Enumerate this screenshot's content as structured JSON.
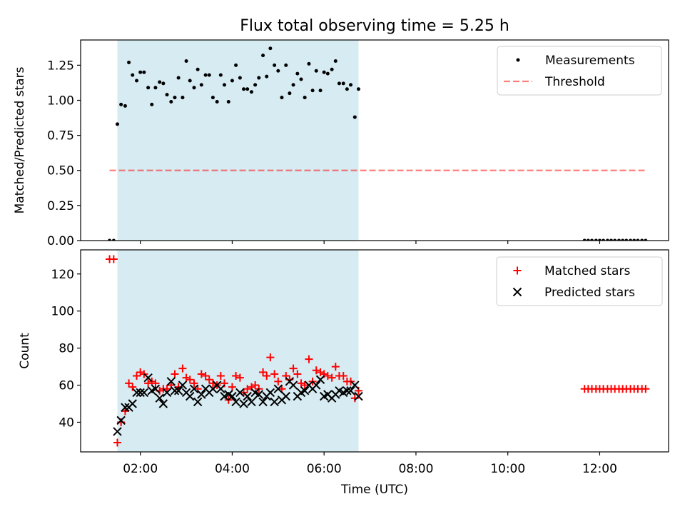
{
  "title": "Flux total observing time = 5.25 h",
  "colors": {
    "shade": "#add8e6",
    "threshold": "#ff0000",
    "matched": "#ff0000",
    "predicted": "#000000",
    "measurement": "#000000"
  },
  "chart_data": [
    {
      "type": "scatter",
      "title": "Flux total observing time = 5.25 h",
      "ylabel": "Matched/Predicted stars",
      "xlabel": "",
      "xlim": [
        0.7,
        13.5
      ],
      "ylim": [
        0,
        1.43
      ],
      "yticks": [
        0.0,
        0.25,
        0.5,
        0.75,
        1.0,
        1.25
      ],
      "ytick_labels": [
        "0.00",
        "0.25",
        "0.50",
        "0.75",
        "1.00",
        "1.25"
      ],
      "xticks": [
        2,
        4,
        6,
        8,
        10,
        12
      ],
      "shaded_span": [
        1.5,
        6.75
      ],
      "legend": [
        "Measurements",
        "Threshold"
      ],
      "threshold": {
        "name": "Threshold",
        "y": 0.5,
        "x_range": [
          1.33,
          13.0
        ]
      },
      "series": [
        {
          "name": "Measurements",
          "x": [
            1.33,
            1.42,
            1.5,
            1.58,
            1.67,
            1.75,
            1.83,
            1.92,
            2.0,
            2.08,
            2.17,
            2.25,
            2.33,
            2.42,
            2.5,
            2.58,
            2.67,
            2.75,
            2.83,
            2.92,
            3.0,
            3.08,
            3.17,
            3.25,
            3.33,
            3.42,
            3.5,
            3.58,
            3.67,
            3.75,
            3.83,
            3.92,
            4.0,
            4.08,
            4.17,
            4.25,
            4.33,
            4.42,
            4.5,
            4.58,
            4.67,
            4.75,
            4.83,
            4.92,
            5.0,
            5.08,
            5.17,
            5.25,
            5.33,
            5.42,
            5.5,
            5.58,
            5.67,
            5.75,
            5.83,
            5.92,
            6.0,
            6.08,
            6.17,
            6.25,
            6.33,
            6.42,
            6.5,
            6.58,
            6.67,
            6.75,
            11.67,
            11.75,
            11.83,
            11.92,
            12.0,
            12.08,
            12.17,
            12.25,
            12.33,
            12.42,
            12.5,
            12.58,
            12.67,
            12.75,
            12.83,
            12.92,
            13.0
          ],
          "y": [
            0.0,
            0.0,
            0.83,
            0.97,
            0.96,
            1.27,
            1.18,
            1.14,
            1.2,
            1.2,
            1.09,
            0.97,
            1.09,
            1.13,
            1.12,
            1.04,
            0.99,
            1.02,
            1.16,
            1.02,
            1.28,
            1.14,
            1.09,
            1.22,
            1.11,
            1.18,
            1.18,
            1.02,
            0.99,
            1.18,
            1.11,
            0.99,
            1.14,
            1.25,
            1.16,
            1.08,
            1.08,
            1.06,
            1.11,
            1.16,
            1.32,
            1.17,
            1.37,
            1.25,
            1.21,
            1.02,
            1.25,
            1.05,
            1.11,
            1.19,
            1.15,
            1.02,
            1.26,
            1.07,
            1.21,
            1.07,
            1.2,
            1.19,
            1.22,
            1.28,
            1.12,
            1.12,
            1.08,
            1.11,
            0.88,
            1.08,
            0.0,
            0.0,
            0.0,
            0.0,
            0.0,
            0.0,
            0.0,
            0.0,
            0.0,
            0.0,
            0.0,
            0.0,
            0.0,
            0.0,
            0.0,
            0.0,
            0.0
          ]
        }
      ]
    },
    {
      "type": "scatter",
      "title": "",
      "ylabel": "Count",
      "xlabel": "Time (UTC)",
      "xlim": [
        0.7,
        13.5
      ],
      "ylim": [
        24,
        133
      ],
      "yticks": [
        40,
        60,
        80,
        100,
        120
      ],
      "ytick_labels": [
        "40",
        "60",
        "80",
        "100",
        "120"
      ],
      "xticks": [
        2,
        4,
        6,
        8,
        10,
        12
      ],
      "xtick_labels": [
        "02:00",
        "04:00",
        "06:00",
        "08:00",
        "10:00",
        "12:00"
      ],
      "shaded_span": [
        1.5,
        6.75
      ],
      "legend": [
        "Matched stars",
        "Predicted stars"
      ],
      "series": [
        {
          "name": "Matched stars",
          "marker": "plus",
          "x": [
            1.33,
            1.42,
            1.5,
            1.58,
            1.67,
            1.75,
            1.83,
            1.92,
            2.0,
            2.08,
            2.17,
            2.25,
            2.33,
            2.42,
            2.5,
            2.58,
            2.67,
            2.75,
            2.83,
            2.92,
            3.0,
            3.08,
            3.17,
            3.25,
            3.33,
            3.42,
            3.5,
            3.58,
            3.67,
            3.75,
            3.83,
            3.92,
            4.0,
            4.08,
            4.17,
            4.25,
            4.33,
            4.42,
            4.5,
            4.58,
            4.67,
            4.75,
            4.83,
            4.92,
            5.0,
            5.08,
            5.17,
            5.25,
            5.33,
            5.42,
            5.5,
            5.58,
            5.67,
            5.75,
            5.83,
            5.92,
            6.0,
            6.08,
            6.17,
            6.25,
            6.33,
            6.42,
            6.5,
            6.58,
            6.67,
            6.75,
            11.67,
            11.75,
            11.83,
            11.92,
            12.0,
            12.08,
            12.17,
            12.25,
            12.33,
            12.42,
            12.5,
            12.58,
            12.67,
            12.75,
            12.83,
            12.92,
            13.0
          ],
          "y": [
            128,
            128,
            29,
            40,
            46,
            61,
            59,
            65,
            67,
            66,
            61,
            62,
            61,
            57,
            58,
            58,
            60,
            66,
            59,
            69,
            64,
            63,
            61,
            58,
            66,
            65,
            63,
            61,
            60,
            65,
            61,
            52,
            59,
            65,
            64,
            56,
            58,
            59,
            60,
            58,
            67,
            65,
            75,
            66,
            62,
            58,
            65,
            63,
            69,
            66,
            61,
            60,
            74,
            62,
            68,
            67,
            66,
            65,
            64,
            70,
            65,
            65,
            62,
            62,
            53,
            57,
            58,
            58,
            58,
            58,
            58,
            58,
            58,
            58,
            58,
            58,
            58,
            58,
            58,
            58,
            58,
            58,
            58
          ]
        },
        {
          "name": "Predicted stars",
          "marker": "x",
          "x": [
            1.5,
            1.58,
            1.67,
            1.75,
            1.83,
            1.92,
            2.0,
            2.08,
            2.17,
            2.25,
            2.33,
            2.42,
            2.5,
            2.58,
            2.67,
            2.75,
            2.83,
            2.92,
            3.0,
            3.08,
            3.17,
            3.25,
            3.33,
            3.42,
            3.5,
            3.58,
            3.67,
            3.75,
            3.83,
            3.92,
            4.0,
            4.08,
            4.17,
            4.25,
            4.33,
            4.42,
            4.5,
            4.58,
            4.67,
            4.75,
            4.83,
            4.92,
            5.0,
            5.08,
            5.17,
            5.25,
            5.33,
            5.42,
            5.5,
            5.58,
            5.67,
            5.75,
            5.83,
            5.92,
            6.0,
            6.08,
            6.17,
            6.25,
            6.33,
            6.42,
            6.5,
            6.58,
            6.67,
            6.75
          ],
          "y": [
            35,
            41,
            48,
            48,
            50,
            56,
            56,
            56,
            64,
            57,
            58,
            53,
            50,
            56,
            62,
            57,
            57,
            60,
            56,
            54,
            58,
            51,
            55,
            58,
            56,
            58,
            60,
            58,
            54,
            55,
            54,
            51,
            56,
            50,
            54,
            51,
            56,
            55,
            51,
            54,
            56,
            51,
            58,
            52,
            54,
            62,
            60,
            54,
            56,
            57,
            60,
            58,
            60,
            63,
            54,
            55,
            53,
            55,
            57,
            56,
            57,
            57,
            60,
            54
          ]
        }
      ]
    }
  ]
}
